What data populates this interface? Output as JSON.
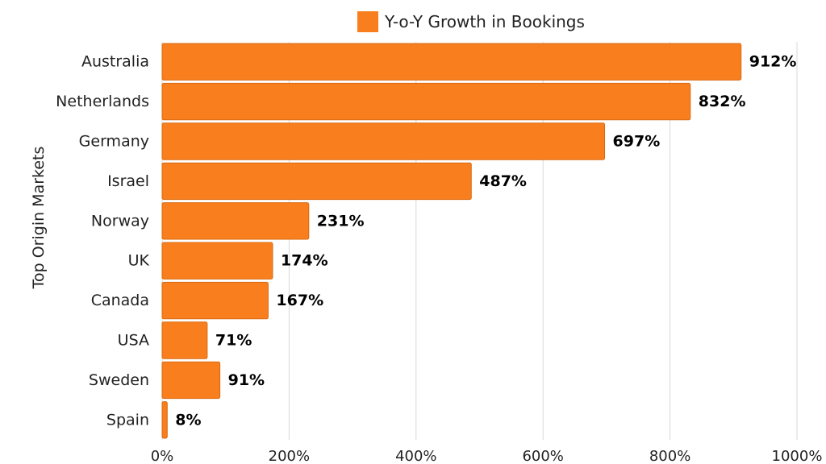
{
  "chart_data": {
    "type": "bar",
    "orientation": "horizontal",
    "categories": [
      "Australia",
      "Netherlands",
      "Germany",
      "Israel",
      "Norway",
      "UK",
      "Canada",
      "USA",
      "Sweden",
      "Spain"
    ],
    "series": [
      {
        "name": "Y-o-Y Growth in Bookings",
        "values": [
          912,
          832,
          697,
          487,
          231,
          174,
          167,
          71,
          91,
          8
        ],
        "data_labels": [
          "912%",
          "832%",
          "697%",
          "487%",
          "231%",
          "174%",
          "167%",
          "71%",
          "91%",
          "8%"
        ]
      }
    ],
    "title": "",
    "xlabel": "",
    "ylabel": "Top Origin Markets",
    "xlim": [
      0,
      1000
    ],
    "x_ticks": [
      0,
      200,
      400,
      600,
      800,
      1000
    ],
    "x_tick_labels": [
      "0%",
      "200%",
      "400%",
      "600%",
      "800%",
      "1000%"
    ],
    "grid": "vertical",
    "legend_position": "top",
    "colors": {
      "bar": "#F97F1E",
      "bar_edge": "#D96A10",
      "grid": "#D9D9D9",
      "text": "#222222",
      "label": "#000000"
    }
  }
}
